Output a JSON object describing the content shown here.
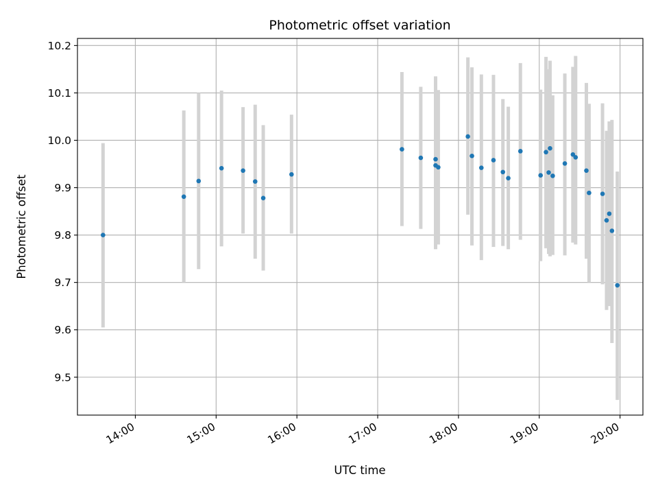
{
  "chart_data": {
    "type": "scatter",
    "title": "Photometric offset variation",
    "xlabel": "UTC time",
    "ylabel": "Photometric offset",
    "x_ticks": [
      "14:00",
      "15:00",
      "16:00",
      "17:00",
      "18:00",
      "19:00",
      "20:00"
    ],
    "y_ticks": [
      "9.5",
      "9.6",
      "9.7",
      "9.8",
      "9.9",
      "10.0",
      "10.1",
      "10.2"
    ],
    "xlim": [
      "13:17",
      "20:17"
    ],
    "ylim": [
      9.42,
      10.215
    ],
    "grid": true,
    "colors": {
      "point": "#1f77b4",
      "errorbar": "#d3d3d3",
      "grid": "#b0b0b0"
    },
    "series": [
      {
        "x": [
          "13:36",
          "14:36",
          "14:47",
          "15:04",
          "15:20",
          "15:29",
          "15:35",
          "15:56",
          "17:18",
          "17:32",
          "17:43",
          "17:43",
          "17:45",
          "18:07",
          "18:10",
          "18:17",
          "18:26",
          "18:33",
          "18:37",
          "18:46",
          "19:01",
          "19:05",
          "19:07",
          "19:08",
          "19:10",
          "19:19",
          "19:25",
          "19:27",
          "19:35",
          "19:37",
          "19:47",
          "19:50",
          "19:52",
          "19:54",
          "19:58"
        ],
        "y": [
          9.8,
          9.881,
          9.914,
          9.941,
          9.936,
          9.913,
          9.878,
          9.928,
          9.981,
          9.963,
          9.96,
          9.947,
          9.943,
          10.008,
          9.967,
          9.942,
          9.958,
          9.933,
          9.92,
          9.977,
          9.926,
          9.975,
          9.932,
          9.983,
          9.925,
          9.951,
          9.97,
          9.964,
          9.936,
          9.889,
          9.887,
          9.831,
          9.845,
          9.809,
          9.694
        ],
        "err_low": [
          9.605,
          9.7,
          9.728,
          9.776,
          9.803,
          9.75,
          9.725,
          9.803,
          9.819,
          9.813,
          9.77,
          9.775,
          9.78,
          9.843,
          9.778,
          9.747,
          9.775,
          9.777,
          9.77,
          9.79,
          9.745,
          9.772,
          9.76,
          9.755,
          9.758,
          9.757,
          9.784,
          9.78,
          9.75,
          9.7,
          9.696,
          9.642,
          9.65,
          9.572,
          9.452
        ],
        "err_high": [
          9.994,
          10.063,
          10.1,
          10.105,
          10.07,
          10.075,
          10.032,
          10.054,
          10.144,
          10.113,
          10.135,
          10.125,
          10.106,
          10.175,
          10.154,
          10.139,
          10.138,
          10.087,
          10.071,
          10.163,
          10.107,
          10.176,
          10.15,
          10.168,
          10.095,
          10.141,
          10.155,
          10.178,
          10.121,
          10.077,
          10.078,
          10.02,
          10.04,
          10.043,
          9.934
        ]
      }
    ]
  }
}
